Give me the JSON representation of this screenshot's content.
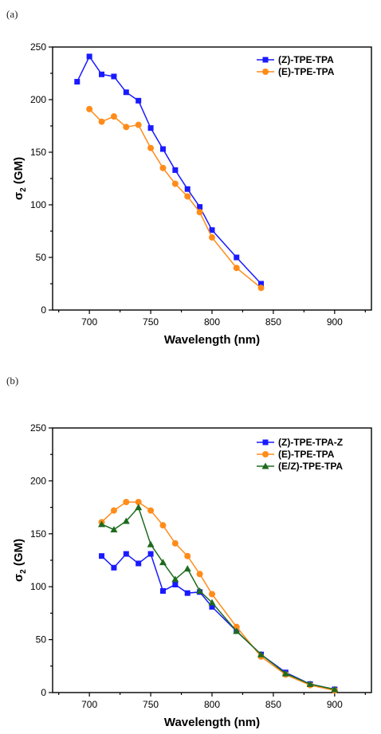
{
  "panels": [
    {
      "letter": "(a)"
    },
    {
      "letter": "(b)"
    }
  ],
  "chart_data": [
    {
      "type": "line",
      "title": "",
      "xlabel": "Wavelength (nm)",
      "ylabel_main": "σ",
      "ylabel_sub": "2",
      "ylabel_unit": " (GM)",
      "xlim": [
        670,
        930
      ],
      "ylim": [
        0,
        250
      ],
      "xticks": [
        700,
        750,
        800,
        850,
        900
      ],
      "yticks": [
        0,
        50,
        100,
        150,
        200,
        250
      ],
      "legend_position": "top-right",
      "grid": false,
      "series": [
        {
          "name": "(Z)-TPE-TPA",
          "color": "#1a1aff",
          "marker": "square",
          "x": [
            690,
            700,
            710,
            720,
            730,
            740,
            750,
            760,
            770,
            780,
            790,
            800,
            820,
            840
          ],
          "y": [
            217,
            241,
            224,
            222,
            207,
            199,
            173,
            153,
            133,
            115,
            98,
            76,
            50,
            25
          ]
        },
        {
          "name": "(E)-TPE-TPA",
          "color": "#ff8c1a",
          "marker": "circle",
          "x": [
            700,
            710,
            720,
            730,
            740,
            750,
            760,
            770,
            780,
            790,
            800,
            820,
            840
          ],
          "y": [
            191,
            179,
            184,
            174,
            176,
            154,
            135,
            120,
            108,
            93,
            69,
            40,
            21
          ]
        }
      ]
    },
    {
      "type": "line",
      "title": "",
      "xlabel": "Wavelength (nm)",
      "ylabel_main": "σ",
      "ylabel_sub": "2",
      "ylabel_unit": " (GM)",
      "xlim": [
        670,
        930
      ],
      "ylim": [
        0,
        250
      ],
      "xticks": [
        700,
        750,
        800,
        850,
        900
      ],
      "yticks": [
        0,
        50,
        100,
        150,
        200,
        250
      ],
      "legend_position": "top-right",
      "grid": false,
      "series": [
        {
          "name": "(Z)-TPE-TPA-Z",
          "color": "#1a1aff",
          "marker": "square",
          "x": [
            710,
            720,
            730,
            740,
            750,
            760,
            770,
            780,
            790,
            800,
            820,
            840,
            860,
            880,
            900
          ],
          "y": [
            129,
            118,
            131,
            122,
            131,
            96,
            102,
            94,
            95,
            81,
            58,
            36,
            19,
            8,
            3
          ]
        },
        {
          "name": "(E)-TPE-TPA",
          "color": "#ff8c1a",
          "marker": "circle",
          "x": [
            710,
            720,
            730,
            740,
            750,
            760,
            770,
            780,
            790,
            800,
            820,
            840,
            860,
            880,
            900
          ],
          "y": [
            161,
            172,
            180,
            180,
            172,
            158,
            141,
            129,
            112,
            93,
            62,
            34,
            17,
            7,
            2
          ]
        },
        {
          "name": "(E/Z)-TPE-TPA",
          "color": "#1e6b1e",
          "marker": "triangle",
          "x": [
            710,
            720,
            730,
            740,
            750,
            760,
            770,
            780,
            790,
            800,
            820,
            840,
            860,
            880,
            900
          ],
          "y": [
            159,
            154,
            162,
            175,
            140,
            123,
            107,
            117,
            96,
            85,
            58,
            36,
            18,
            8,
            3
          ]
        }
      ]
    }
  ]
}
